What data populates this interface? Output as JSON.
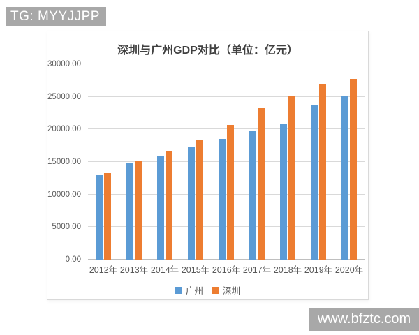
{
  "watermarks": {
    "top_left": "TG: MYYJJPP",
    "bottom_right": "www.bfztc.com"
  },
  "chart_data": {
    "type": "bar",
    "title": "深圳与广州GDP对比（单位：亿元）",
    "categories": [
      "2012年",
      "2013年",
      "2014年",
      "2015年",
      "2016年",
      "2017年",
      "2018年",
      "2019年",
      "2020年"
    ],
    "series": [
      {
        "id": "guangzhou",
        "name": "广州",
        "color": "#5B9BD5",
        "values": [
          13000,
          14900,
          16000,
          17200,
          18550,
          19700,
          20900,
          23650,
          25050
        ]
      },
      {
        "id": "shenzhen",
        "name": "深圳",
        "color": "#ED7D31",
        "values": [
          13300,
          15200,
          16650,
          18350,
          20650,
          23250,
          25100,
          26900,
          27700
        ]
      }
    ],
    "ylim": [
      0,
      30000
    ],
    "ytick_step": 5000,
    "ytick_labels": [
      "0.00",
      "5000.00",
      "10000.00",
      "15000.00",
      "20000.00",
      "25000.00",
      "30000.00"
    ],
    "grid": true,
    "legend_position": "bottom",
    "axis_label_color": "#595959",
    "gridline_color": "#D9D9D9"
  }
}
